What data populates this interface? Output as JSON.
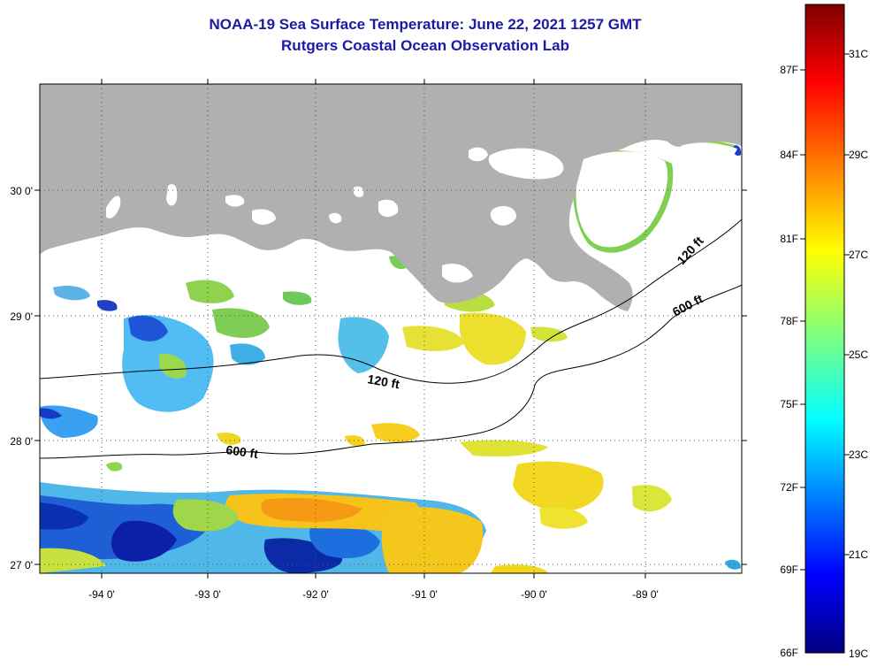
{
  "title_line1": "NOAA-19 Sea Surface Temperature:  June 22, 2021 1257 GMT",
  "title_line2": "Rutgers Coastal Ocean Observation Lab",
  "map": {
    "lat_labels": [
      "30 0'",
      "29 0'",
      "28 0'",
      "27 0'"
    ],
    "lon_labels": [
      "-94 0'",
      "-93 0'",
      "-92 0'",
      "-91 0'",
      "-90 0'",
      "-89 0'"
    ],
    "contour_labels": [
      "120 ft",
      "600 ft",
      "120 ft",
      "600 ft"
    ],
    "land_color": "#b0b0b0",
    "water_no_data_color": "#ffffff"
  },
  "colorbar": {
    "f_labels": [
      "87F",
      "84F",
      "81F",
      "78F",
      "75F",
      "72F",
      "69F",
      "66F"
    ],
    "c_labels": [
      "31C",
      "29C",
      "27C",
      "25C",
      "23C",
      "21C",
      "19C"
    ],
    "colormap": "jet"
  }
}
